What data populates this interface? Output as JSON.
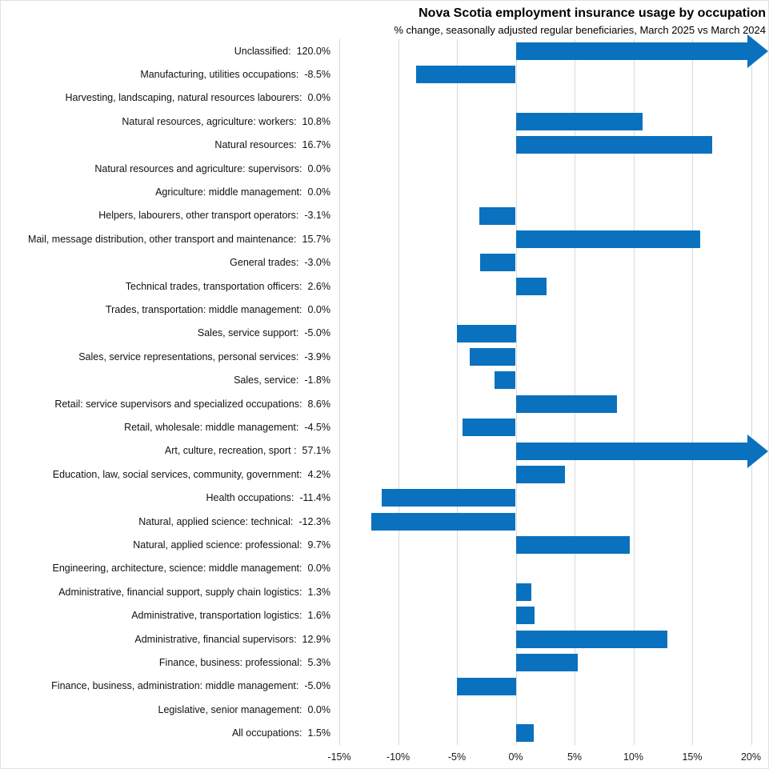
{
  "chart_data": {
    "type": "bar",
    "orientation": "horizontal",
    "title": "Nova Scotia employment insurance usage by occupation",
    "subtitle": "% change, seasonally adjusted regular beneficiaries, March 2025 vs March 2024",
    "xlabel": "",
    "ylabel": "",
    "xlim": [
      -15,
      20
    ],
    "x_ticks": [
      -15,
      -10,
      -5,
      0,
      5,
      10,
      15,
      20
    ],
    "x_tick_labels": [
      "-15%",
      "-10%",
      "-5%",
      "0%",
      "5%",
      "10%",
      "15%",
      "20%"
    ],
    "grid": true,
    "legend": false,
    "bar_color": "#0a71be",
    "gridline_color": "#d9d9d9",
    "categories": [
      "Unclassified",
      "Manufacturing, utilities occupations",
      "Harvesting, landscaping, natural resources labourers",
      "Natural resources, agriculture: workers",
      "Natural resources",
      "Natural resources and agriculture: supervisors",
      "Agriculture: middle management",
      "Helpers, labourers, other transport operators",
      "Mail, message distribution, other transport and maintenance",
      "General trades",
      "Technical trades, transportation officers",
      "Trades, transportation: middle management",
      "Sales, service support",
      "Sales, service representations, personal services",
      "Sales, service",
      "Retail: service supervisors and specialized occupations",
      "Retail, wholesale: middle management",
      "Art, culture, recreation, sport ",
      "Education, law, social services, community, government",
      "Health occupations",
      "Natural, applied science: technical",
      "Natural, applied science: professional",
      "Engineering, architecture, science: middle management",
      "Administrative, financial support, supply chain logistics",
      "Administrative, transportation logistics",
      "Administrative, financial supervisors",
      "Finance, business: professional",
      "Finance, business, administration: middle management",
      "Legislative, senior management",
      "All occupations"
    ],
    "values": [
      120.0,
      -8.5,
      0.0,
      10.8,
      16.7,
      0.0,
      0.0,
      -3.1,
      15.7,
      -3.0,
      2.6,
      0.0,
      -5.0,
      -3.9,
      -1.8,
      8.6,
      -4.5,
      57.1,
      4.2,
      -11.4,
      -12.3,
      9.7,
      0.0,
      1.3,
      1.6,
      12.9,
      5.3,
      -5.0,
      0.0,
      1.5
    ],
    "value_labels": [
      "120.0%",
      "-8.5%",
      "0.0%",
      "10.8%",
      "16.7%",
      "0.0%",
      "0.0%",
      "-3.1%",
      "15.7%",
      "-3.0%",
      "2.6%",
      "0.0%",
      "-5.0%",
      "-3.9%",
      "-1.8%",
      "8.6%",
      "-4.5%",
      "57.1%",
      "4.2%",
      "-11.4%",
      "-12.3%",
      "9.7%",
      "0.0%",
      "1.3%",
      "1.6%",
      "12.9%",
      "5.3%",
      "-5.0%",
      "0.0%",
      "1.5%"
    ],
    "overflow_indices": [
      0,
      17
    ],
    "overflow_note": "bars exceeding axis max are drawn as right-pointing arrows"
  }
}
